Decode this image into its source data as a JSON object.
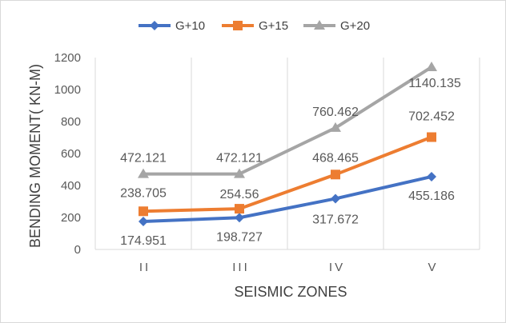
{
  "chart_data": {
    "type": "line",
    "title": "",
    "xlabel": "SEISMIC ZONES",
    "ylabel": "BENDING MOMENT( KN-M)",
    "categories": [
      "II",
      "III",
      "IV",
      "V"
    ],
    "ylim": [
      0,
      1200
    ],
    "yticks": [
      0,
      200,
      400,
      600,
      800,
      1000,
      1200
    ],
    "grid": "vertical",
    "legend_position": "top",
    "series": [
      {
        "name": "G+10",
        "color": "#4472c4",
        "marker": "diamond",
        "values": [
          174.951,
          198.727,
          317.672,
          455.186
        ],
        "labels": [
          "174.951",
          "198.727",
          "317.672",
          "455.186"
        ]
      },
      {
        "name": "G+15",
        "color": "#ed7d31",
        "marker": "square",
        "values": [
          238.705,
          254.56,
          468.465,
          702.452
        ],
        "labels": [
          "238.705",
          "254.56",
          "468.465",
          "702.452"
        ]
      },
      {
        "name": "G+20",
        "color": "#a5a5a5",
        "marker": "triangle",
        "values": [
          472.121,
          472.121,
          760.462,
          1140.135
        ],
        "labels": [
          "472.121",
          "472.121",
          "760.462",
          "1140.135"
        ]
      }
    ]
  }
}
